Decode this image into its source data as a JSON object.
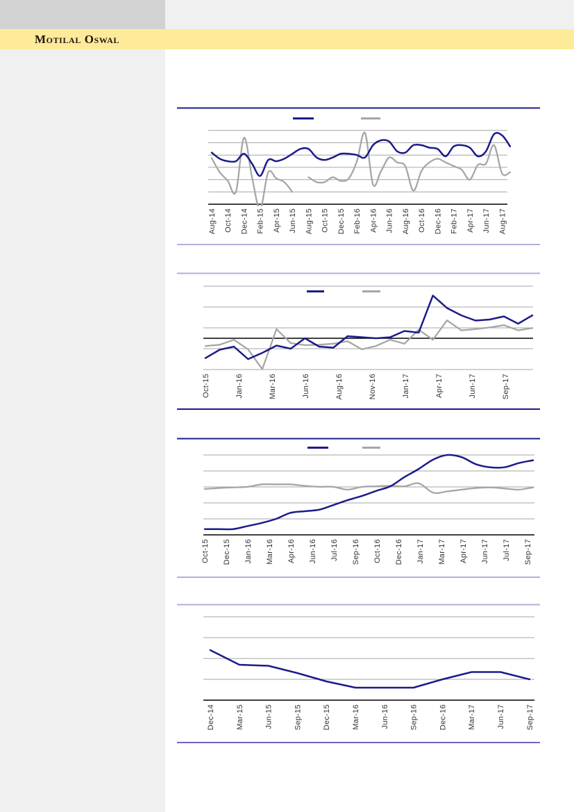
{
  "header": {
    "brand": "Motilal Oswal",
    "band_color": "#fdeb9a",
    "brand_text_color": "#20130a",
    "topleft_block_color": "#d2d2d2",
    "sidebar_color": "#f0f0f0"
  },
  "colors": {
    "navy_series": "#1b1b8a",
    "gray_series": "#a6a6a6",
    "gridline": "#a6a6a6",
    "axis": "#000000",
    "divider_navy": "#1b1b8a",
    "divider_lavender": "#b2b0dd",
    "divider_purple": "#7163c8",
    "label_text": "#333333"
  },
  "chart_data": [
    {
      "id": "c1",
      "type": "line",
      "title": "",
      "legend": {
        "visible": true,
        "swatches": [
          "navy",
          "gray"
        ],
        "labels_visible": false,
        "position": "top-center"
      },
      "x_labels": [
        "Aug-14",
        "Oct-14",
        "Dec-14",
        "Feb-15",
        "Apr-15",
        "Jun-15",
        "Aug-15",
        "Oct-15",
        "Dec-15",
        "Feb-16",
        "Apr-16",
        "Jun-16",
        "Aug-16",
        "Oct-16",
        "Dec-16",
        "Feb-17",
        "Apr-17",
        "Jun-17",
        "Aug-17"
      ],
      "x_range": [
        "Aug-14",
        "Sep-17"
      ],
      "frequency": "monthly",
      "ylim": [
        0,
        6.2
      ],
      "gridline_values": [
        1,
        2,
        3,
        4,
        5,
        6
      ],
      "zero_axis": 0,
      "y_axis_labels_visible": false,
      "series": [
        {
          "name": "navy",
          "color_key": "navy_series",
          "values": [
            4.2,
            3.7,
            3.5,
            3.5,
            4.1,
            3.3,
            2.3,
            3.6,
            3.5,
            3.7,
            4.1,
            4.5,
            4.5,
            3.8,
            3.6,
            3.8,
            4.1,
            4.1,
            4.0,
            3.8,
            4.8,
            5.2,
            5.1,
            4.3,
            4.2,
            4.8,
            4.8,
            4.6,
            4.5,
            3.9,
            4.7,
            4.8,
            4.6,
            3.9,
            4.3,
            5.7,
            5.6,
            4.7
          ]
        },
        {
          "name": "gray",
          "color_key": "gray_series",
          "values": [
            3.75,
            2.6,
            1.9,
            1.0,
            5.4,
            2.2,
            -0.4,
            2.6,
            2.1,
            1.8,
            1.0,
            null,
            2.2,
            1.8,
            1.8,
            2.2,
            1.9,
            2.1,
            3.5,
            5.8,
            1.6,
            2.7,
            3.8,
            3.4,
            3.1,
            1.1,
            2.7,
            3.4,
            3.7,
            3.4,
            3.1,
            2.8,
            2.0,
            3.2,
            3.3,
            4.8,
            2.5,
            2.6
          ]
        }
      ]
    },
    {
      "id": "c2",
      "type": "line",
      "title": "",
      "legend": {
        "visible": true,
        "swatches": [
          "navy",
          "gray"
        ],
        "labels_visible": false,
        "position": "top-center"
      },
      "x_labels": [
        "Oct-15",
        "Jan-16",
        "Mar-16",
        "Jun-16",
        "Aug-16",
        "Nov-16",
        "Jan-17",
        "Apr-17",
        "Jun-17",
        "Sep-17"
      ],
      "x_range": [
        "Oct-15",
        "Sep-17"
      ],
      "ylim": [
        -1.65,
        2.6
      ],
      "gridline_values": [
        2.5,
        1.5,
        0.5,
        -0.5,
        -1.5
      ],
      "zero_axis": 0,
      "y_axis_labels_visible": false,
      "series": [
        {
          "name": "navy",
          "color_key": "navy_series",
          "values": [
            -0.95,
            -0.55,
            -0.4,
            -1.0,
            -0.7,
            -0.35,
            -0.5,
            0.0,
            -0.4,
            -0.45,
            0.1,
            0.05,
            0.0,
            0.05,
            0.35,
            0.27,
            2.05,
            1.45,
            1.1,
            0.85,
            0.9,
            1.05,
            0.7,
            1.1
          ]
        },
        {
          "name": "gray",
          "color_key": "gray_series",
          "values": [
            -0.37,
            -0.31,
            -0.07,
            -0.53,
            -1.48,
            0.44,
            -0.23,
            -0.33,
            -0.31,
            -0.26,
            -0.14,
            -0.53,
            -0.37,
            -0.07,
            -0.26,
            0.41,
            -0.07,
            0.86,
            0.38,
            0.44,
            0.52,
            0.63,
            0.38,
            0.49
          ]
        }
      ]
    },
    {
      "id": "c3",
      "type": "line",
      "title": "",
      "legend": {
        "visible": true,
        "swatches": [
          "navy",
          "gray"
        ],
        "labels_visible": false,
        "position": "top-center"
      },
      "x_labels": [
        "Oct-15",
        "Dec-15",
        "Jan-16",
        "Mar-16",
        "Apr-16",
        "Jun-16",
        "Jul-16",
        "Sep-16",
        "Oct-16",
        "Dec-16",
        "Jan-17",
        "Mar-17",
        "Apr-17",
        "Jun-17",
        "Jul-17",
        "Sep-17"
      ],
      "x_range": [
        "Oct-15",
        "Sep-17"
      ],
      "ylim": [
        0,
        5.2
      ],
      "gridline_values": [
        1,
        2,
        3,
        4,
        5
      ],
      "zero_axis": 0,
      "y_axis_labels_visible": false,
      "series": [
        {
          "name": "navy",
          "color_key": "navy_series",
          "values": [
            0.36,
            0.36,
            0.36,
            0.55,
            0.75,
            1.0,
            1.38,
            1.48,
            1.57,
            1.86,
            2.17,
            2.43,
            2.75,
            3.04,
            3.62,
            4.13,
            4.71,
            5.0,
            4.86,
            4.42,
            4.23,
            4.23,
            4.49,
            4.67
          ]
        },
        {
          "name": "gray",
          "color_key": "gray_series",
          "values": [
            2.87,
            2.93,
            2.97,
            3.01,
            3.16,
            3.16,
            3.16,
            3.07,
            3.01,
            3.01,
            2.83,
            3.0,
            3.04,
            3.07,
            3.04,
            3.22,
            2.64,
            2.72,
            2.83,
            2.93,
            2.97,
            2.9,
            2.83,
            2.97
          ]
        }
      ]
    },
    {
      "id": "c4",
      "type": "line",
      "title": "",
      "legend": {
        "visible": false
      },
      "x_labels": [
        "Dec-14",
        "Mar-15",
        "Jun-15",
        "Sep-15",
        "Dec-15",
        "Mar-16",
        "Jun-16",
        "Sep-16",
        "Dec-16",
        "Mar-17",
        "Jun-17",
        "Sep-17"
      ],
      "x_range": [
        "Dec-14",
        "Sep-17"
      ],
      "frequency": "quarterly",
      "ylim": [
        0,
        4.3
      ],
      "gridline_values": [
        1,
        2,
        3,
        4
      ],
      "zero_axis": 0,
      "y_axis_labels_visible": false,
      "series": [
        {
          "name": "navy",
          "color_key": "navy_series",
          "values": [
            2.4,
            1.7,
            1.65,
            1.3,
            0.9,
            0.6,
            0.6,
            0.6,
            1.0,
            1.35,
            1.35,
            1.0
          ]
        }
      ]
    }
  ]
}
